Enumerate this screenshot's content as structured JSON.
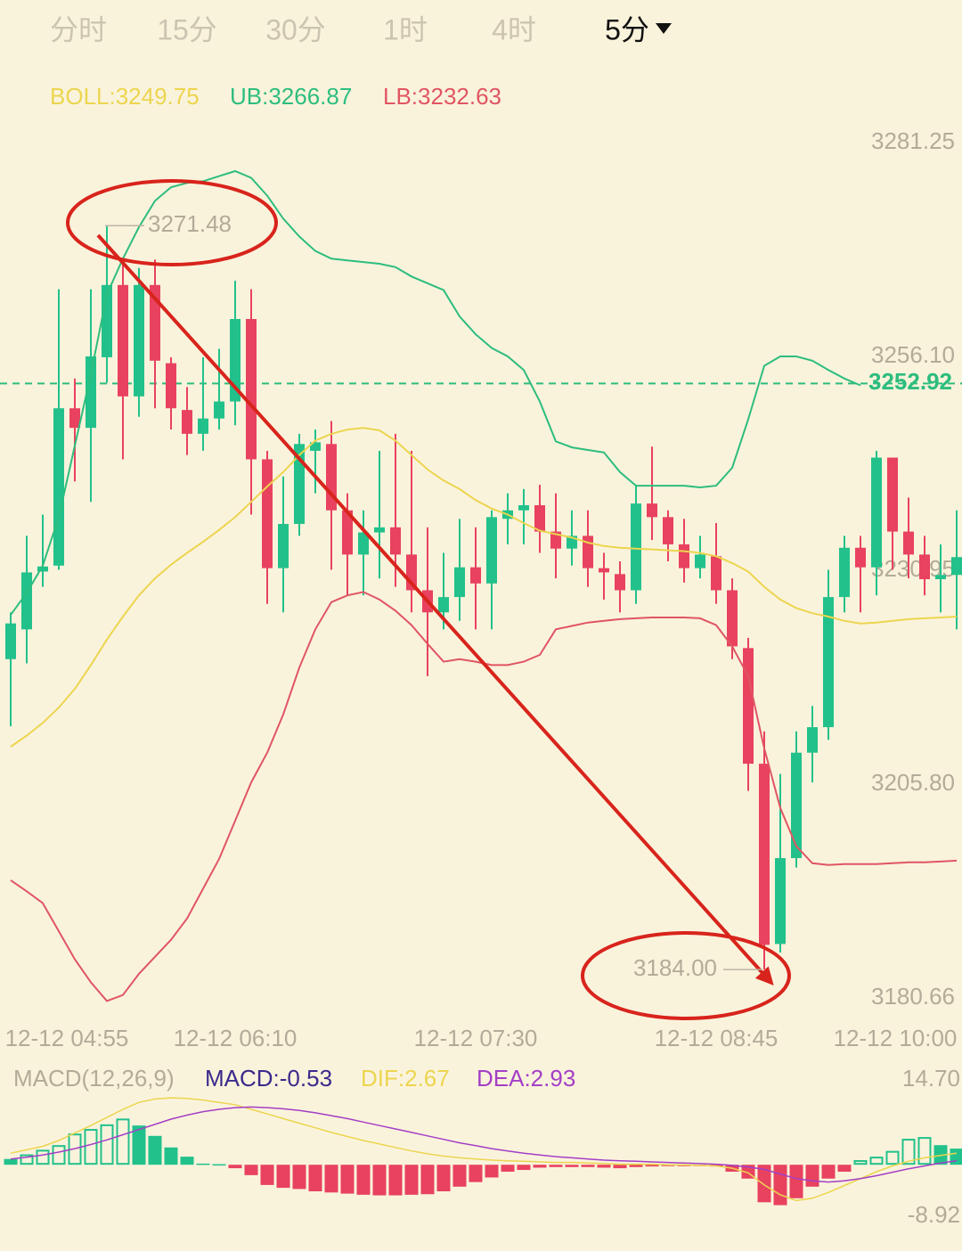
{
  "tabs": [
    "分时",
    "15分",
    "30分",
    "1时",
    "4时",
    "5分"
  ],
  "active_tab": 5,
  "chart_data": [
    {
      "type": "candlestick",
      "categories": [
        "12-12 04:55",
        null,
        null,
        null,
        null,
        null,
        null,
        null,
        null,
        null,
        null,
        null,
        null,
        null,
        "12-12 06:10",
        null,
        null,
        null,
        null,
        null,
        null,
        null,
        null,
        null,
        null,
        null,
        null,
        null,
        null,
        "12-12 07:30",
        null,
        null,
        null,
        null,
        null,
        null,
        null,
        null,
        null,
        null,
        null,
        null,
        null,
        null,
        "12-12 08:45",
        null,
        null,
        null,
        null,
        null,
        null,
        null,
        null,
        null,
        null,
        null,
        null,
        null,
        null,
        "12-12 10:00"
      ],
      "open": [
        3220.5,
        3224,
        3230.8,
        3231.5,
        3250,
        3247.7,
        3256,
        3264.5,
        3251.4,
        3264.5,
        3255.3,
        3249.8,
        3247,
        3248.8,
        3250.8,
        3260.5,
        3244,
        3231.2,
        3236.4,
        3245,
        3245.8,
        3238,
        3232.8,
        3235.4,
        3236,
        3232.8,
        3228.6,
        3226,
        3227.8,
        3231.3,
        3229.4,
        3237,
        3238,
        3238.6,
        3235.5,
        3233.5,
        3235,
        3231.2,
        3230.5,
        3228.6,
        3238.8,
        3237.2,
        3234,
        3231.2,
        3232.6,
        3228.6,
        3221.8,
        3208.2,
        3187,
        3197.1,
        3209.5,
        3212.5,
        3227.8,
        3233.6,
        3231.3,
        3244.2,
        3235.5,
        3232.8,
        3229.9,
        3230.4
      ],
      "high": [
        3226,
        3235,
        3237.5,
        3264,
        3253.5,
        3264,
        3271.48,
        3267,
        3266.5,
        3267.5,
        3256,
        3252.5,
        3256,
        3257,
        3265,
        3264,
        3245,
        3242,
        3247,
        3247.5,
        3248.5,
        3240,
        3238,
        3245,
        3247,
        3245,
        3236,
        3233,
        3237,
        3236,
        3238,
        3240,
        3240.5,
        3241,
        3240,
        3238,
        3238,
        3233,
        3232,
        3241,
        3245.5,
        3238,
        3237,
        3235,
        3236.5,
        3230,
        3223,
        3212,
        3207,
        3212,
        3215,
        3231,
        3235,
        3235,
        3245,
        3244.2,
        3239.5,
        3235,
        3234,
        3238
      ],
      "low": [
        3212.6,
        3220,
        3229,
        3231,
        3241.4,
        3239,
        3253,
        3244,
        3249,
        3250,
        3247.5,
        3244.5,
        3245,
        3247.5,
        3248,
        3237.5,
        3227,
        3226,
        3235,
        3240,
        3231,
        3228,
        3228,
        3230,
        3229,
        3226,
        3218.5,
        3224,
        3225,
        3224,
        3224,
        3234,
        3234,
        3233,
        3230,
        3231.5,
        3229,
        3227.5,
        3226,
        3227,
        3234.5,
        3232,
        3229.5,
        3230,
        3227,
        3220.5,
        3205,
        3184,
        3186,
        3196,
        3206,
        3211,
        3226,
        3226,
        3228,
        3231,
        3230,
        3228,
        3226,
        3224
      ],
      "close": [
        3224.7,
        3230.7,
        3231.4,
        3250,
        3247.7,
        3256.1,
        3264.5,
        3251.4,
        3264.5,
        3255.6,
        3250,
        3247,
        3248.8,
        3250.8,
        3260.5,
        3244,
        3231.2,
        3236.4,
        3245.8,
        3246,
        3238,
        3232.8,
        3235.4,
        3236,
        3232.8,
        3228.6,
        3226,
        3227.8,
        3231.3,
        3229.4,
        3237.2,
        3238,
        3238.6,
        3235.5,
        3233.5,
        3235,
        3231.2,
        3230.7,
        3228.6,
        3238.8,
        3237.2,
        3234,
        3231.2,
        3232.8,
        3228.6,
        3222,
        3208.2,
        3186.9,
        3197.1,
        3209.5,
        3212.5,
        3227.8,
        3233.6,
        3231.3,
        3244.2,
        3235.5,
        3232.8,
        3229.9,
        3230.4,
        3232.5
      ],
      "up_color": "#22c18b",
      "down_color": "#e8425e",
      "series": [
        {
          "label": "BOLL:3249.75",
          "color": "#ecd54f",
          "values": [
            3210.2,
            3211.5,
            3213,
            3214.8,
            3217,
            3219.8,
            3222.8,
            3225.5,
            3228,
            3230,
            3231.6,
            3233,
            3234.3,
            3235.7,
            3237.2,
            3239,
            3240.8,
            3242.5,
            3244.5,
            3246.2,
            3247,
            3247.5,
            3247.7,
            3247.4,
            3246.2,
            3244.5,
            3242.8,
            3241.5,
            3240.5,
            3239.2,
            3238.2,
            3237.5,
            3236.5,
            3235.6,
            3235.2,
            3234.8,
            3234.2,
            3233.8,
            3233.6,
            3233.5,
            3233.4,
            3233.3,
            3233.2,
            3233,
            3232.6,
            3231.8,
            3230.8,
            3229,
            3227.5,
            3226.5,
            3225.9,
            3225.5,
            3225,
            3224.7,
            3224.8,
            3225,
            3225.2,
            3225.3,
            3225.4,
            3225.5
          ]
        },
        {
          "label": "UB:3266.87",
          "color": "#2dbd7e",
          "values": [
            3225.7,
            3228.3,
            3231.5,
            3237.2,
            3245.6,
            3254,
            3263.4,
            3267.6,
            3271.3,
            3274.4,
            3276,
            3276.5,
            3276.7,
            3277.3,
            3277.9,
            3277.1,
            3275,
            3272.3,
            3270.2,
            3268.5,
            3267.6,
            3267.4,
            3267.2,
            3267,
            3266.6,
            3265.5,
            3264.7,
            3263.9,
            3260.8,
            3258.7,
            3257.1,
            3256.1,
            3254.5,
            3250.8,
            3246.1,
            3245.4,
            3245.1,
            3244.8,
            3242.5,
            3240.9,
            3240.9,
            3240.9,
            3240.9,
            3240.7,
            3240.9,
            3243,
            3248.7,
            3255,
            3256.1,
            3256.1,
            3255.6,
            3254.5,
            3253.5,
            3252.7,
            null,
            null,
            null,
            null,
            null,
            null
          ]
        },
        {
          "label": "LB:3232.63",
          "color": "#e05563",
          "values": [
            3194.5,
            3193.2,
            3191.8,
            3188.5,
            3185.2,
            3182.5,
            3180.3,
            3181,
            3183.5,
            3185.5,
            3187.5,
            3190,
            3193.5,
            3197,
            3201.5,
            3206,
            3209.5,
            3214,
            3219.5,
            3224,
            3227.2,
            3228,
            3228.4,
            3227.5,
            3226.2,
            3224.5,
            3222.3,
            3220.2,
            3220.5,
            3220.2,
            3219.8,
            3219.8,
            3220.2,
            3221,
            3224,
            3224.4,
            3224.8,
            3225,
            3225.2,
            3225.3,
            3225.4,
            3225.4,
            3225.4,
            3225.3,
            3224.5,
            3222,
            3218.5,
            3210,
            3203,
            3198.5,
            3196.5,
            3196.3,
            3196.4,
            3196.4,
            3196.4,
            3196.5,
            3196.6,
            3196.6,
            3196.7,
            3196.8
          ]
        }
      ],
      "ylim": [
        3178.56,
        3285.65
      ],
      "yticks": [
        3281.25,
        {
          "value": 3256.1,
          "label": "3256.10"
        },
        3230.95,
        {
          "value": 3205.8,
          "label": "3205.80"
        },
        3180.66
      ],
      "current_price": 3252.92,
      "current_price_color": "#2dbd7e",
      "annotations": [
        {
          "value": 3271.48
        },
        {
          "value": 3184,
          "label": "3184.00"
        }
      ]
    },
    {
      "type": "macd",
      "title": "MACD(12,26,9)",
      "histogram": {
        "label": "MACD:-0.53",
        "color": "#3b2a8c",
        "values": [
          1.0,
          1.8,
          2.6,
          3.4,
          5.4,
          6.2,
          7.0,
          8.0,
          6.8,
          5.0,
          3.0,
          1.4,
          0.2,
          0.1,
          -0.6,
          -1.8,
          -3.5,
          -4.0,
          -4.2,
          -4.6,
          -4.8,
          -5.0,
          -5.2,
          -5.3,
          -5.3,
          -5.2,
          -5.1,
          -4.6,
          -3.8,
          -3.0,
          -2.2,
          -1.2,
          -0.9,
          -0.5,
          -0.4,
          -0.4,
          -0.4,
          -0.5,
          -0.6,
          -0.4,
          -0.3,
          -0.2,
          -0.1,
          -0.1,
          -0.3,
          -1.2,
          -2.4,
          -6.5,
          -7.0,
          -5.8,
          -3.8,
          -2.4,
          -1.2,
          0.8,
          1.4,
          2.4,
          4.5,
          4.8,
          3.4,
          2.8
        ]
      },
      "up_color": "#22c18b",
      "down_color": "#e8425e",
      "series": [
        {
          "label": "DIF:2.67",
          "color": "#ecd54f",
          "values": [
            2.0,
            2.6,
            3.2,
            4.2,
            5.5,
            6.8,
            8.2,
            9.6,
            10.8,
            11.4,
            11.6,
            11.5,
            11.2,
            10.8,
            10.4,
            9.6,
            8.8,
            8.0,
            7.2,
            6.4,
            5.6,
            4.9,
            4.2,
            3.6,
            3.0,
            2.4,
            1.9,
            1.5,
            1.2,
            1.0,
            0.8,
            0.7,
            0.6,
            0.5,
            0.4,
            0.4,
            0.3,
            0.2,
            0.1,
            0.1,
            0.1,
            0.0,
            0.0,
            -0.1,
            -0.2,
            -0.6,
            -1.4,
            -3.5,
            -5.2,
            -6.2,
            -5.8,
            -4.8,
            -3.6,
            -2.4,
            -1.2,
            -0.2,
            0.6,
            1.2,
            1.6,
            2.0
          ]
        },
        {
          "label": "DEA:2.93",
          "color": "#a43fc6",
          "values": [
            1.0,
            1.3,
            1.7,
            2.2,
            2.8,
            3.5,
            4.3,
            5.2,
            6.1,
            7.0,
            7.9,
            8.6,
            9.2,
            9.6,
            9.9,
            10.0,
            9.9,
            9.7,
            9.4,
            9.0,
            8.5,
            8.0,
            7.4,
            6.8,
            6.2,
            5.6,
            5.0,
            4.4,
            3.8,
            3.3,
            2.8,
            2.4,
            2.0,
            1.7,
            1.4,
            1.2,
            1.0,
            0.8,
            0.7,
            0.6,
            0.5,
            0.4,
            0.3,
            0.2,
            0.1,
            -0.1,
            -0.4,
            -0.8,
            -1.6,
            -2.4,
            -2.8,
            -3.0,
            -2.8,
            -2.4,
            -1.9,
            -1.3,
            -0.7,
            -0.2,
            0.3,
            0.7
          ]
        }
      ],
      "ylim": [
        -12.78,
        17.32
      ],
      "yticks": [
        {
          "value": 14.7,
          "label": "14.70"
        },
        -8.92
      ]
    }
  ]
}
